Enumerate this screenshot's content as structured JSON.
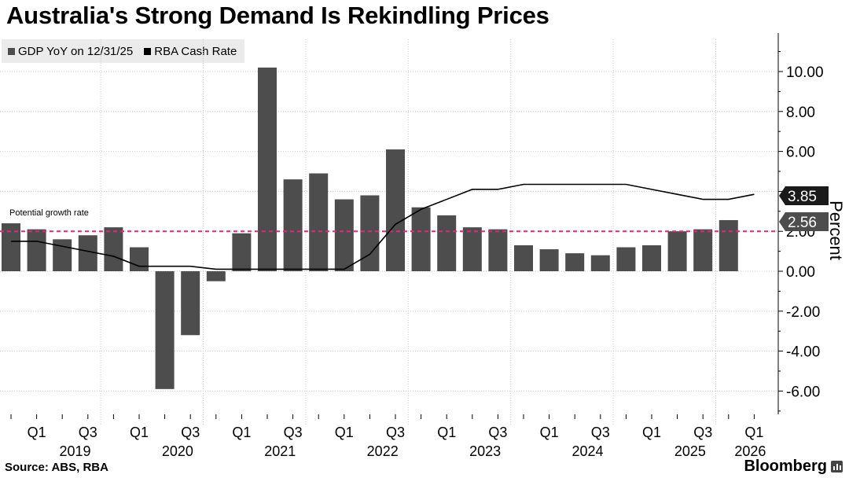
{
  "title": "Australia's Strong Demand Is Rekindling Prices",
  "legend": [
    {
      "label": "GDP YoY on 12/31/25",
      "color": "#4d4d4d"
    },
    {
      "label": "RBA Cash Rate",
      "color": "#000000"
    }
  ],
  "source": "Source: ABS, RBA",
  "brand": "Bloomberg",
  "brand_icon": "bloomberg-bars-icon",
  "colors": {
    "bar": "#4d4d4d",
    "line": "#000000",
    "reference": "#e0287a",
    "grid": "#c8c8c8"
  },
  "chart_data": {
    "type": "bar",
    "ylabel": "Percent",
    "ylim": [
      -7,
      11.5
    ],
    "yticks": [
      10,
      8,
      6,
      4,
      2,
      0,
      -2,
      -4,
      -6
    ],
    "ytick_labels": [
      "10.00",
      "8.00",
      "6.00",
      "4.00",
      "2.00",
      "0.00",
      "-2.00",
      "-4.00",
      "-6.00"
    ],
    "x_quarter_labels": [
      "Q1",
      "Q3",
      "Q1",
      "Q3",
      "Q1",
      "Q3",
      "Q1",
      "Q3",
      "Q1",
      "Q3",
      "Q1",
      "Q3",
      "Q1",
      "Q3",
      "Q1"
    ],
    "years": [
      "2019",
      "2020",
      "2021",
      "2022",
      "2023",
      "2024",
      "2025",
      "2026"
    ],
    "series": [
      {
        "name": "GDP YoY on 12/31/25",
        "type": "bar",
        "values": [
          2.4,
          2.1,
          1.6,
          1.8,
          2.2,
          1.2,
          -5.9,
          -3.2,
          -0.5,
          1.9,
          10.2,
          4.6,
          4.9,
          3.6,
          3.8,
          6.1,
          3.2,
          2.8,
          2.2,
          2.1,
          1.3,
          1.1,
          0.9,
          0.8,
          1.2,
          1.3,
          2.0,
          2.1,
          2.56
        ]
      },
      {
        "name": "RBA Cash Rate",
        "type": "line",
        "values": [
          1.5,
          1.5,
          1.25,
          1.0,
          0.75,
          0.25,
          0.25,
          0.25,
          0.1,
          0.1,
          0.1,
          0.1,
          0.1,
          0.1,
          0.85,
          2.35,
          3.1,
          3.6,
          4.1,
          4.1,
          4.35,
          4.35,
          4.35,
          4.35,
          4.35,
          4.1,
          3.85,
          3.6,
          3.6,
          3.85
        ]
      }
    ],
    "reference_line": {
      "label": "Potential growth rate",
      "value": 2.0
    },
    "end_labels": [
      {
        "series": "RBA Cash Rate",
        "value": "3.85"
      },
      {
        "series": "GDP YoY on 12/31/25",
        "value": "2.56"
      }
    ]
  }
}
